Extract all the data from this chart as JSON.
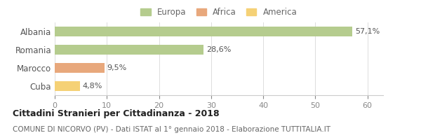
{
  "categories": [
    "Albania",
    "Romania",
    "Marocco",
    "Cuba"
  ],
  "values": [
    57.1,
    28.6,
    9.5,
    4.8
  ],
  "labels": [
    "57,1%",
    "28,6%",
    "9,5%",
    "4,8%"
  ],
  "colors": [
    "#b5cc8e",
    "#b5cc8e",
    "#e8a87c",
    "#f5d176"
  ],
  "legend_items": [
    {
      "label": "Europa",
      "color": "#b5cc8e"
    },
    {
      "label": "Africa",
      "color": "#e8a87c"
    },
    {
      "label": "America",
      "color": "#f5d176"
    }
  ],
  "xlim": [
    0,
    63
  ],
  "xticks": [
    0,
    10,
    20,
    30,
    40,
    50,
    60
  ],
  "title_bold": "Cittadini Stranieri per Cittadinanza - 2018",
  "subtitle": "COMUNE DI NICORVO (PV) - Dati ISTAT al 1° gennaio 2018 - Elaborazione TUTTITALIA.IT",
  "background_color": "#ffffff",
  "bar_height": 0.55,
  "label_fontsize": 8,
  "title_fontsize": 9,
  "subtitle_fontsize": 7.5,
  "tick_fontsize": 8,
  "ytick_fontsize": 8.5,
  "legend_fontsize": 8.5
}
